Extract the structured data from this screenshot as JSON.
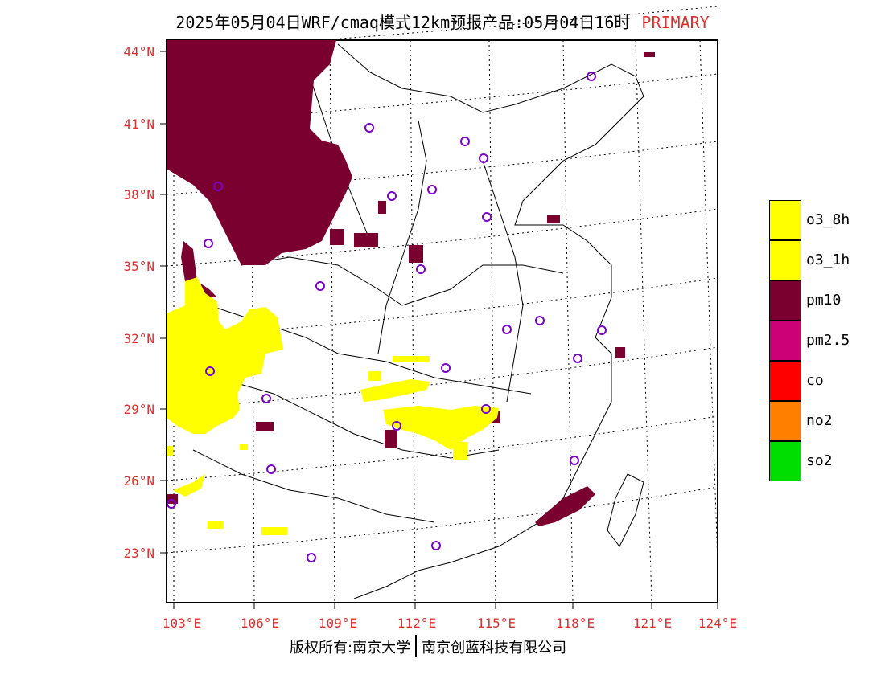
{
  "title": {
    "main": "2025年05月04日WRF/cmaq模式12km预报产品:05月04日16时",
    "tag": "PRIMARY"
  },
  "axes": {
    "lat_labels": [
      "44°N",
      "41°N",
      "38°N",
      "35°N",
      "32°N",
      "29°N",
      "26°N",
      "23°N"
    ],
    "lon_labels": [
      "103°E",
      "106°E",
      "109°E",
      "112°E",
      "115°E",
      "118°E",
      "121°E",
      "124°E"
    ]
  },
  "legend": [
    {
      "label": "o3_8h",
      "color": "#ffff00"
    },
    {
      "label": "o3_1h",
      "color": "#ffff00"
    },
    {
      "label": "pm10",
      "color": "#7a0030"
    },
    {
      "label": "pm2.5",
      "color": "#cc0077"
    },
    {
      "label": "co",
      "color": "#ff0000"
    },
    {
      "label": "no2",
      "color": "#ff8000"
    },
    {
      "label": "so2",
      "color": "#00dd00"
    }
  ],
  "footer": {
    "left": "版权所有:南京大学",
    "right": "南京创蓝科技有限公司"
  }
}
